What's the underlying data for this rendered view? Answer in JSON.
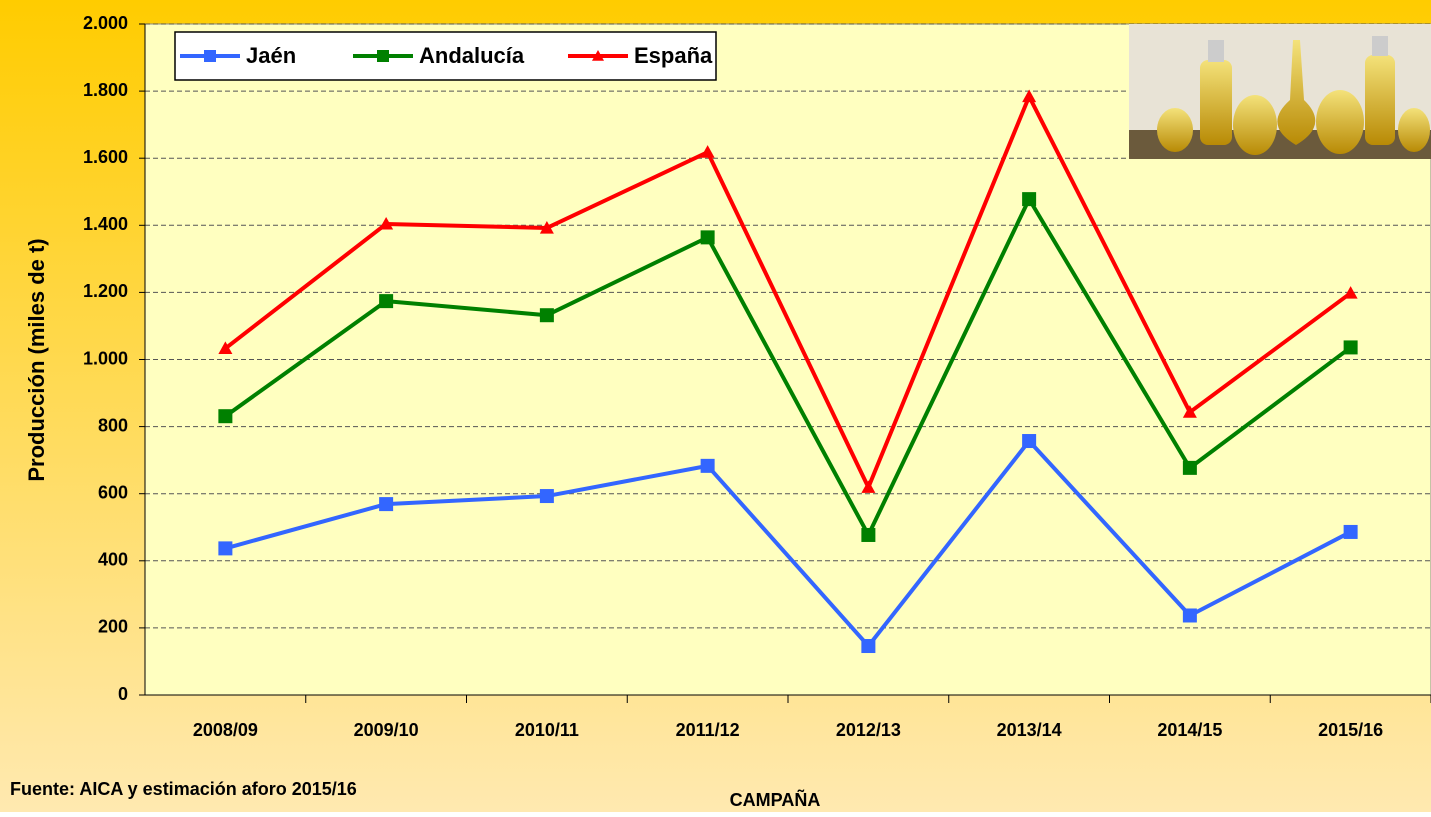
{
  "chart_data": {
    "type": "line",
    "x_label": "CAMPAÑA",
    "y_label": "Producción (miles de t)",
    "source": "Fuente: AICA y estimación aforo 2015/16",
    "categories": [
      "2008/09",
      "2009/10",
      "2010/11",
      "2011/12",
      "2012/13",
      "2013/14",
      "2014/15",
      "2015/16"
    ],
    "series": [
      {
        "name": "Jaén",
        "color": "#3366ff",
        "marker": "square",
        "values": [
          437,
          569,
          593,
          683,
          146,
          757,
          237,
          486
        ]
      },
      {
        "name": "Andalucía",
        "color": "#008000",
        "marker": "square",
        "values": [
          831,
          1174,
          1132,
          1364,
          477,
          1478,
          677,
          1036
        ]
      },
      {
        "name": "España",
        "color": "#ff0000",
        "marker": "triangle",
        "values": [
          1033,
          1404,
          1392,
          1618,
          619,
          1784,
          843,
          1198
        ]
      }
    ],
    "ylim": [
      0,
      2000
    ],
    "yticks": [
      0,
      200,
      400,
      600,
      800,
      {
        "value": 1000,
        "label": "1.000"
      },
      {
        "value": 1200,
        "label": "1.200"
      },
      {
        "value": 1400,
        "label": "1.400"
      },
      {
        "value": 1600,
        "label": "1.600"
      },
      {
        "value": 1800,
        "label": "1.800"
      },
      {
        "value": 2000,
        "label": "2.000"
      }
    ],
    "grid": true,
    "legend": "top-left"
  }
}
